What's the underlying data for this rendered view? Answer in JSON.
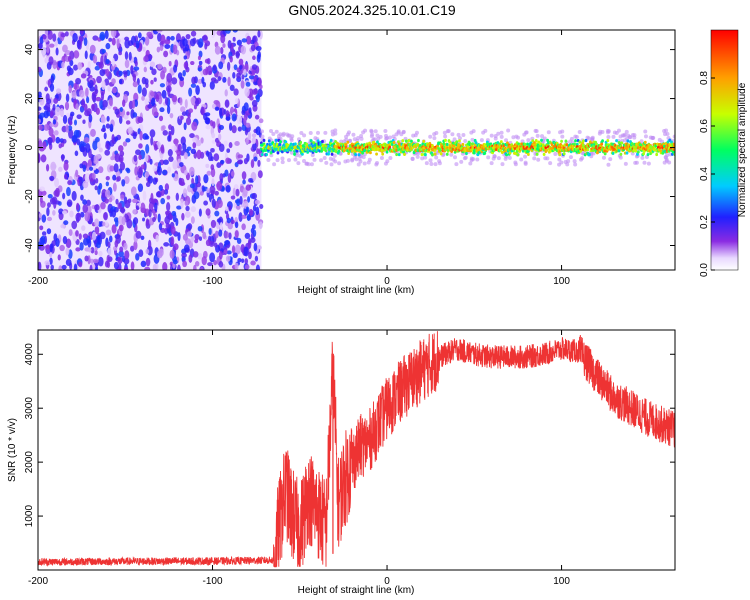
{
  "page_title": "GN05.2024.325.10.01.C19",
  "chart_data": [
    {
      "type": "heatmap",
      "xlabel": "Height of straight line (km)",
      "ylabel": "Frequency (Hz)",
      "xlim": [
        -200,
        165
      ],
      "ylim": [
        -50,
        48
      ],
      "xticks": [
        -200,
        -100,
        0,
        100
      ],
      "yticks": [
        -40,
        -20,
        0,
        20,
        40
      ],
      "colorbar": {
        "label": "Normalized spectral amplitude",
        "range": [
          0,
          1
        ],
        "ticks": [
          0.0,
          0.2,
          0.4,
          0.6,
          0.8
        ]
      },
      "regions": [
        {
          "x_range": [
            -200,
            -72
          ],
          "y_range": [
            -50,
            48
          ],
          "amplitude": [
            0.05,
            0.25
          ],
          "description_class": "broadband_noise"
        },
        {
          "x_range": [
            -72,
            165
          ],
          "y_center": 0,
          "y_halfwidth": 3,
          "amplitude": [
            0.3,
            1.0
          ],
          "description_class": "narrow_band"
        }
      ]
    },
    {
      "type": "line",
      "xlabel": "Height of straight line (km)",
      "ylabel": "SNR (10 * v/v)",
      "xlim": [
        -200,
        165
      ],
      "ylim": [
        0,
        4450
      ],
      "xticks": [
        -200,
        -100,
        0,
        100
      ],
      "yticks": [
        1000,
        2000,
        3000,
        4000
      ],
      "series": [
        {
          "color": "#ee3333",
          "x": [
            -200,
            -150,
            -100,
            -65,
            -62,
            -58,
            -55,
            -50,
            -45,
            -40,
            -35,
            -31,
            -28,
            -25,
            -20,
            -15,
            -10,
            -5,
            0,
            10,
            20,
            30,
            40,
            50,
            60,
            70,
            80,
            90,
            100,
            110,
            120,
            130,
            140,
            150,
            165
          ],
          "y": [
            150,
            160,
            165,
            180,
            800,
            1500,
            1100,
            700,
            1400,
            1100,
            800,
            3700,
            1200,
            1600,
            2000,
            2300,
            2400,
            2700,
            3000,
            3400,
            3700,
            3950,
            4100,
            4000,
            3950,
            3950,
            3950,
            4000,
            4100,
            4050,
            3600,
            3200,
            3000,
            2800,
            2600
          ]
        }
      ]
    }
  ]
}
